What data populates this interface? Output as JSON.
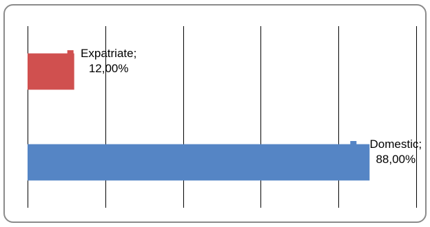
{
  "chart_data": {
    "type": "bar",
    "orientation": "horizontal",
    "categories": [
      "Expatriate",
      "Domestic"
    ],
    "values": [
      12.0,
      88.0
    ],
    "colors": [
      "#d0504f",
      "#5585c5"
    ],
    "labels": [
      {
        "name": "Expatriate;",
        "value": "12,00%"
      },
      {
        "name": "Domestic;",
        "value": "88,00%"
      }
    ],
    "xlim": [
      0,
      100
    ],
    "gridlines": "vertical",
    "grid_color": "#000000",
    "legend": "none",
    "title": "",
    "xlabel": "",
    "ylabel": ""
  }
}
